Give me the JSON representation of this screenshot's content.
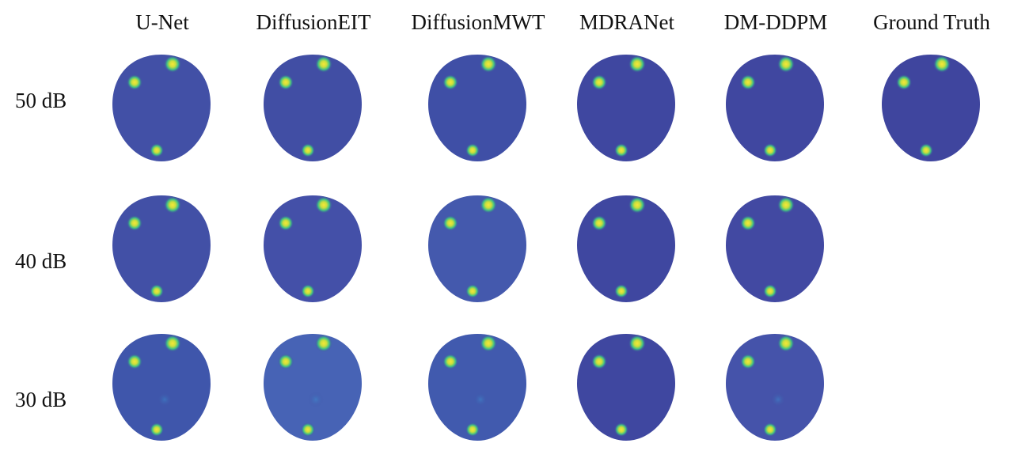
{
  "figure": {
    "columns": [
      "U-Net",
      "DiffusionEIT",
      "DiffusionMWT",
      "MDRANet",
      "DM-DDPM",
      "Ground Truth"
    ],
    "rows": [
      "50 dB",
      "40 dB",
      "30 dB"
    ]
  }
}
